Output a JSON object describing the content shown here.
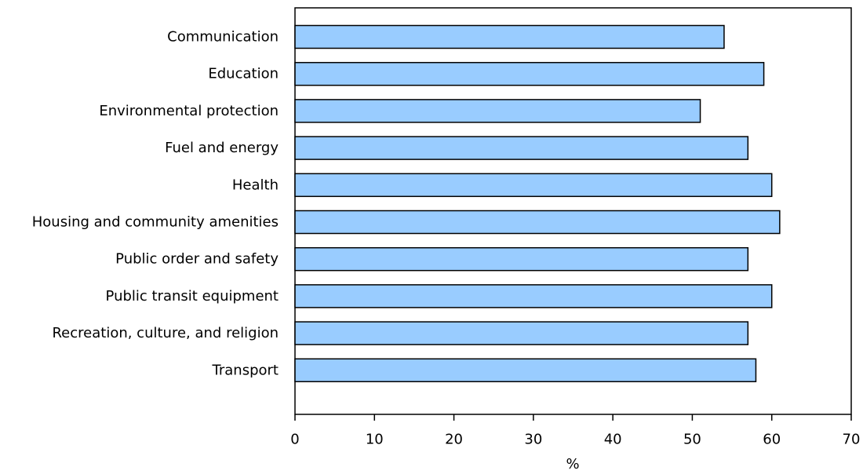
{
  "chart_data": {
    "type": "bar",
    "orientation": "horizontal",
    "title": "",
    "xlabel": "%",
    "ylabel": "",
    "categories": [
      "Communication",
      "Education",
      "Environmental protection",
      "Fuel and energy",
      "Health",
      "Housing and community amenities",
      "Public order and safety",
      "Public transit equipment",
      "Recreation, culture, and religion",
      "Transport"
    ],
    "values": [
      54,
      59,
      51,
      57,
      60,
      61,
      57,
      60,
      57,
      58
    ],
    "xlim": [
      0,
      70
    ],
    "xticks": [
      0,
      10,
      20,
      30,
      40,
      50,
      60,
      70
    ],
    "xtick_labels": [
      "0",
      "10",
      "20",
      "30",
      "40",
      "50",
      "60",
      "70"
    ],
    "grid": false,
    "legend": "none",
    "colors": {
      "bar_fill": "#99ccff",
      "bar_stroke": "#000000",
      "axis": "#000000"
    }
  }
}
